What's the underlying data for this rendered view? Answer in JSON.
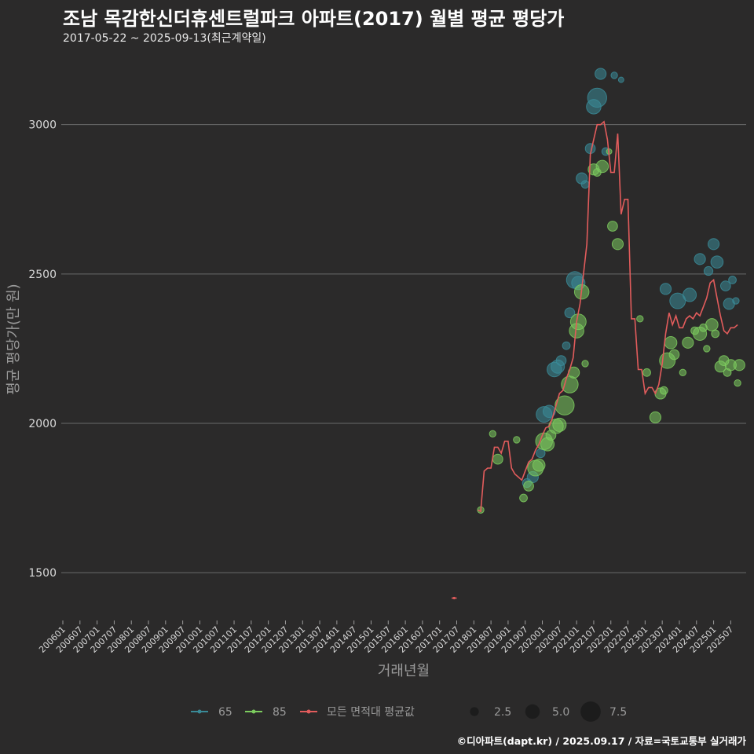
{
  "chart_data": {
    "type": "scatter",
    "title": "조남 목감한신더휴센트럴파크 아파트(2017) 월별 평균 평당가",
    "subtitle": "2017-05-22 ~ 2025-09-13(최근계약일)",
    "xlabel": "거래년월",
    "ylabel": "평균 평당가(만 원)",
    "footer": "©디아파트(dapt.kr) / 2025.09.17 / 자료=국토교통부 실거래가",
    "ylim": [
      1340,
      3220
    ],
    "yticks": [
      1500,
      2000,
      2500,
      3000
    ],
    "xlim": [
      2006.0,
      2025.95
    ],
    "xticks": [
      "200601",
      "200607",
      "200701",
      "200707",
      "200801",
      "200807",
      "200901",
      "200907",
      "201001",
      "201007",
      "201101",
      "201107",
      "201201",
      "201207",
      "201301",
      "201307",
      "201401",
      "201407",
      "201501",
      "201507",
      "201601",
      "201607",
      "201701",
      "201707",
      "201801",
      "201807",
      "201901",
      "201907",
      "202001",
      "202007",
      "202101",
      "202107",
      "202201",
      "202207",
      "202301",
      "202307",
      "202401",
      "202407",
      "202501",
      "202507"
    ],
    "colors": {
      "s65": "#3a8a97",
      "s85": "#7ccb5e",
      "avg": "#e25c5c",
      "grid": "#6a6a6a",
      "bg": "#2b2a2a"
    },
    "series": [
      {
        "name": "65",
        "points": [
          [
            2019.55,
            1800,
            2.5
          ],
          [
            2019.72,
            1820,
            3.5
          ],
          [
            2019.95,
            1900,
            2.5
          ],
          [
            2020.05,
            2030,
            5.5
          ],
          [
            2020.2,
            2040,
            4.0
          ],
          [
            2020.35,
            2180,
            5.0
          ],
          [
            2020.45,
            2190,
            4.5
          ],
          [
            2020.55,
            2210,
            3.0
          ],
          [
            2020.7,
            2260,
            2.0
          ],
          [
            2020.8,
            2370,
            3.0
          ],
          [
            2020.95,
            2480,
            6.0
          ],
          [
            2021.05,
            2470,
            4.5
          ],
          [
            2021.15,
            2820,
            3.5
          ],
          [
            2021.25,
            2800,
            2.0
          ],
          [
            2021.4,
            2920,
            3.0
          ],
          [
            2021.5,
            3060,
            5.0
          ],
          [
            2021.6,
            3090,
            7.0
          ],
          [
            2021.7,
            3170,
            3.5
          ],
          [
            2021.85,
            2910,
            2.0
          ],
          [
            2022.1,
            3165,
            1.5
          ],
          [
            2022.3,
            3150,
            1.0
          ],
          [
            2023.6,
            2450,
            3.5
          ],
          [
            2023.95,
            2410,
            5.5
          ],
          [
            2024.3,
            2430,
            4.5
          ],
          [
            2024.6,
            2550,
            3.5
          ],
          [
            2024.85,
            2510,
            2.5
          ],
          [
            2025.0,
            2600,
            3.5
          ],
          [
            2025.1,
            2540,
            4.0
          ],
          [
            2025.35,
            2460,
            3.0
          ],
          [
            2025.45,
            2400,
            3.5
          ],
          [
            2025.55,
            2480,
            2.0
          ],
          [
            2025.65,
            2410,
            1.5
          ]
        ]
      },
      {
        "name": "85",
        "points": [
          [
            2018.2,
            1710,
            1.5
          ],
          [
            2018.55,
            1965,
            1.5
          ],
          [
            2018.7,
            1880,
            3.0
          ],
          [
            2019.25,
            1945,
            1.5
          ],
          [
            2019.45,
            1750,
            2.0
          ],
          [
            2019.6,
            1790,
            3.0
          ],
          [
            2019.8,
            1850,
            5.5
          ],
          [
            2019.9,
            1860,
            4.0
          ],
          [
            2020.05,
            1940,
            6.0
          ],
          [
            2020.15,
            1930,
            4.5
          ],
          [
            2020.25,
            1960,
            3.0
          ],
          [
            2020.4,
            1990,
            5.0
          ],
          [
            2020.5,
            1995,
            4.5
          ],
          [
            2020.65,
            2060,
            7.0
          ],
          [
            2020.8,
            2130,
            6.0
          ],
          [
            2020.92,
            2170,
            3.5
          ],
          [
            2021.0,
            2310,
            5.0
          ],
          [
            2021.05,
            2340,
            5.5
          ],
          [
            2021.15,
            2440,
            5.0
          ],
          [
            2021.25,
            2200,
            1.5
          ],
          [
            2021.5,
            2850,
            3.5
          ],
          [
            2021.6,
            2840,
            2.0
          ],
          [
            2021.75,
            2860,
            4.0
          ],
          [
            2021.95,
            2910,
            1.0
          ],
          [
            2022.05,
            2660,
            3.0
          ],
          [
            2022.2,
            2600,
            3.5
          ],
          [
            2022.85,
            2350,
            1.5
          ],
          [
            2023.05,
            2170,
            2.0
          ],
          [
            2023.3,
            2020,
            3.5
          ],
          [
            2023.45,
            2100,
            3.5
          ],
          [
            2023.55,
            2110,
            2.0
          ],
          [
            2023.65,
            2210,
            5.5
          ],
          [
            2023.75,
            2270,
            4.0
          ],
          [
            2023.85,
            2230,
            3.0
          ],
          [
            2024.1,
            2170,
            1.5
          ],
          [
            2024.25,
            2270,
            3.5
          ],
          [
            2024.45,
            2310,
            2.0
          ],
          [
            2024.6,
            2300,
            4.5
          ],
          [
            2024.7,
            2320,
            2.0
          ],
          [
            2024.8,
            2250,
            1.5
          ],
          [
            2024.95,
            2330,
            4.0
          ],
          [
            2025.05,
            2300,
            2.0
          ],
          [
            2025.2,
            2190,
            3.5
          ],
          [
            2025.3,
            2210,
            3.0
          ],
          [
            2025.4,
            2170,
            2.0
          ],
          [
            2025.5,
            2195,
            3.5
          ],
          [
            2025.7,
            2135,
            1.5
          ],
          [
            2025.75,
            2195,
            3.5
          ]
        ]
      },
      {
        "name": "모든 면적대 평균값",
        "line": [
          [
            2017.35,
            1415
          ],
          [
            2017.5,
            1415
          ],
          null,
          [
            2018.12,
            1710
          ],
          [
            2018.2,
            1705
          ],
          [
            2018.3,
            1840
          ],
          [
            2018.4,
            1850
          ],
          [
            2018.5,
            1850
          ],
          [
            2018.6,
            1920
          ],
          [
            2018.7,
            1920
          ],
          [
            2018.8,
            1900
          ],
          [
            2018.9,
            1940
          ],
          [
            2019.0,
            1940
          ],
          [
            2019.1,
            1850
          ],
          [
            2019.2,
            1830
          ],
          [
            2019.3,
            1820
          ],
          [
            2019.4,
            1810
          ],
          [
            2019.5,
            1840
          ],
          [
            2019.6,
            1870
          ],
          [
            2019.7,
            1880
          ],
          [
            2019.8,
            1910
          ],
          [
            2019.9,
            1930
          ],
          [
            2020.0,
            1960
          ],
          [
            2020.1,
            1985
          ],
          [
            2020.2,
            1990
          ],
          [
            2020.3,
            2020
          ],
          [
            2020.4,
            2060
          ],
          [
            2020.5,
            2100
          ],
          [
            2020.6,
            2110
          ],
          [
            2020.7,
            2150
          ],
          [
            2020.8,
            2180
          ],
          [
            2020.9,
            2220
          ],
          [
            2021.0,
            2340
          ],
          [
            2021.1,
            2400
          ],
          [
            2021.2,
            2500
          ],
          [
            2021.3,
            2600
          ],
          [
            2021.4,
            2900
          ],
          [
            2021.5,
            2950
          ],
          [
            2021.6,
            3000
          ],
          [
            2021.7,
            3000
          ],
          [
            2021.8,
            3010
          ],
          [
            2021.9,
            2950
          ],
          [
            2022.0,
            2840
          ],
          [
            2022.1,
            2840
          ],
          [
            2022.2,
            2970
          ],
          [
            2022.3,
            2700
          ],
          [
            2022.4,
            2750
          ],
          [
            2022.5,
            2750
          ],
          [
            2022.6,
            2350
          ],
          [
            2022.7,
            2350
          ],
          [
            2022.8,
            2180
          ],
          [
            2022.9,
            2180
          ],
          [
            2023.0,
            2100
          ],
          [
            2023.1,
            2120
          ],
          [
            2023.2,
            2120
          ],
          [
            2023.3,
            2100
          ],
          [
            2023.4,
            2130
          ],
          [
            2023.5,
            2200
          ],
          [
            2023.6,
            2300
          ],
          [
            2023.7,
            2370
          ],
          [
            2023.8,
            2330
          ],
          [
            2023.9,
            2360
          ],
          [
            2024.0,
            2320
          ],
          [
            2024.1,
            2320
          ],
          [
            2024.2,
            2350
          ],
          [
            2024.3,
            2360
          ],
          [
            2024.4,
            2350
          ],
          [
            2024.5,
            2370
          ],
          [
            2024.6,
            2360
          ],
          [
            2024.7,
            2390
          ],
          [
            2024.8,
            2420
          ],
          [
            2024.9,
            2470
          ],
          [
            2025.0,
            2480
          ],
          [
            2025.1,
            2420
          ],
          [
            2025.2,
            2360
          ],
          [
            2025.3,
            2310
          ],
          [
            2025.4,
            2300
          ],
          [
            2025.5,
            2320
          ],
          [
            2025.6,
            2320
          ],
          [
            2025.7,
            2330
          ]
        ]
      }
    ],
    "legend": {
      "items": [
        "65",
        "85",
        "모든 면적대 평균값"
      ],
      "sizes": [
        "2.5",
        "5.0",
        "7.5"
      ],
      "placement": "bottom"
    }
  }
}
